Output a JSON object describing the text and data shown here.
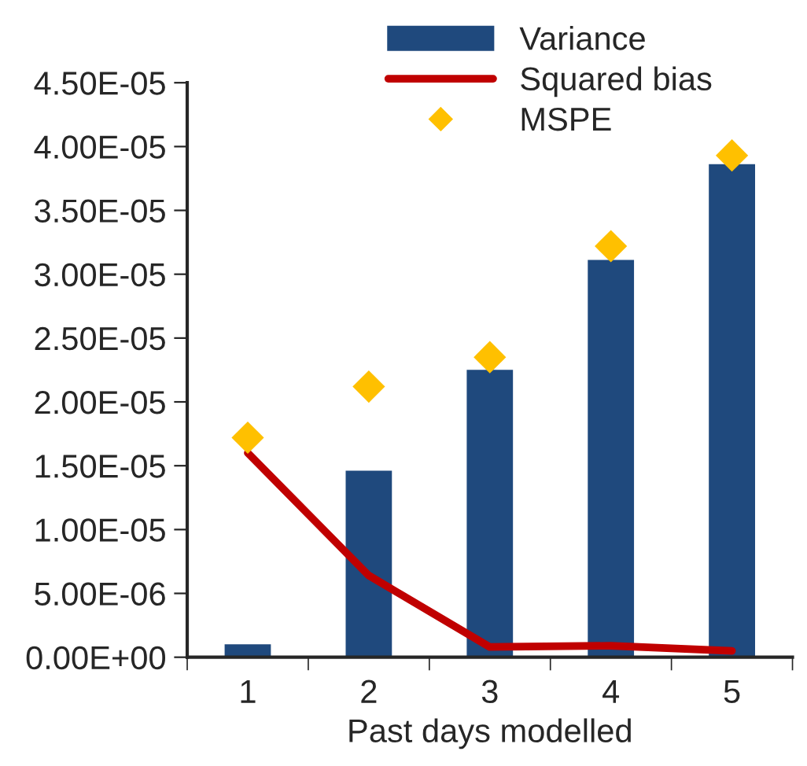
{
  "chart_data": {
    "type": "bar",
    "xlabel": "Past days modelled",
    "categories": [
      "1",
      "2",
      "3",
      "4",
      "5"
    ],
    "series": [
      {
        "name": "Variance",
        "color": "#1f497d",
        "values": [
          1.1e-06,
          1.47e-05,
          2.26e-05,
          3.12e-05,
          3.87e-05
        ]
      },
      {
        "name": "Squared bias",
        "type": "line",
        "color": "#c00000",
        "values": [
          1.6e-05,
          6.4e-06,
          8e-07,
          9e-07,
          5e-07
        ]
      },
      {
        "name": "MSPE",
        "type": "scatter",
        "color": "#ffc000",
        "marker": "diamond",
        "values": [
          1.72e-05,
          2.12e-05,
          2.35e-05,
          3.22e-05,
          3.93e-05
        ]
      }
    ],
    "ylim": [
      0,
      4.5e-05
    ],
    "yticks": [
      {
        "value": 0,
        "label": "0.00E+00"
      },
      {
        "value": 5e-06,
        "label": "5.00E-06"
      },
      {
        "value": 1e-05,
        "label": "1.00E-05"
      },
      {
        "value": 1.5e-05,
        "label": "1.50E-05"
      },
      {
        "value": 2e-05,
        "label": "2.00E-05"
      },
      {
        "value": 2.5e-05,
        "label": "2.50E-05"
      },
      {
        "value": 3e-05,
        "label": "3.00E-05"
      },
      {
        "value": 3.5e-05,
        "label": "3.50E-05"
      },
      {
        "value": 4e-05,
        "label": "4.00E-05"
      },
      {
        "value": 4.5e-05,
        "label": "4.50E-05"
      }
    ],
    "grid": false,
    "legend": "top"
  }
}
